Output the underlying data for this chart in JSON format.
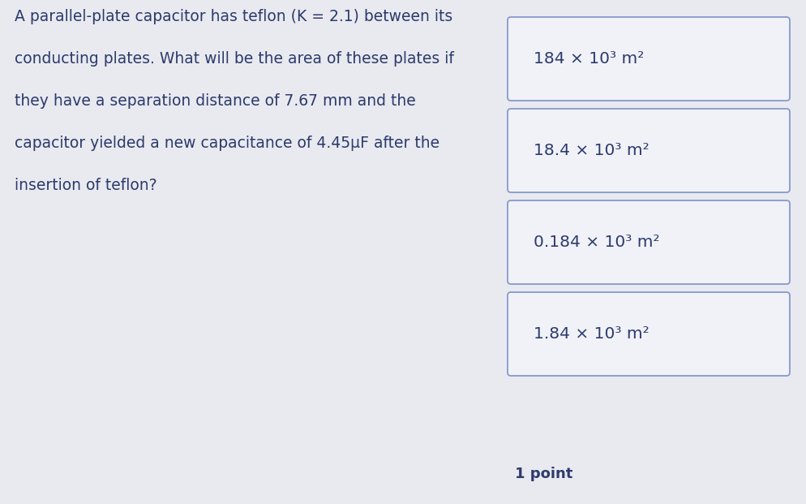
{
  "bg_color": "#e8eaf0",
  "question_text_lines": [
    "A parallel-plate capacitor has teflon (K = 2.1) between its",
    "conducting plates. What will be the area of these plates if",
    "they have a separation distance of 7.67 mm and the",
    "capacitor yielded a new capacitance of 4.45μF after the",
    "insertion of teflon?"
  ],
  "options": [
    "184 × 10³ m²",
    "18.4 × 10³ m²",
    "0.184 × 10³ m²",
    "1.84 × 10³ m²"
  ],
  "footer_text": "1 point",
  "text_color": "#2d3a6b",
  "box_bg": "#f0f2f8",
  "box_border": "#8899cc",
  "font_size_question": 13.5,
  "font_size_options": 14.5,
  "font_size_footer": 13
}
